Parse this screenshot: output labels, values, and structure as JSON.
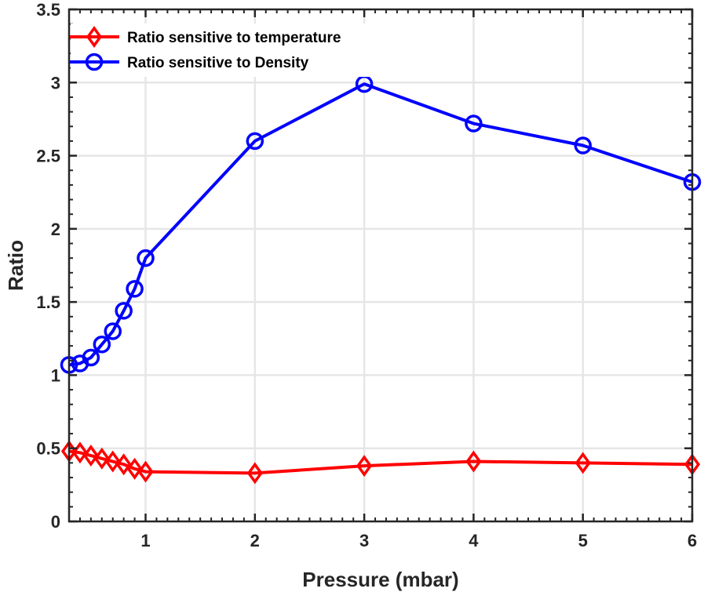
{
  "chart_data": {
    "type": "line",
    "title": "",
    "xlabel": "Pressure (mbar)",
    "ylabel": "Ratio",
    "xlim": [
      0.3,
      6
    ],
    "ylim": [
      0,
      3.5
    ],
    "xticks": [
      1,
      2,
      3,
      4,
      5,
      6
    ],
    "xtick_labels": [
      "1",
      "2",
      "3",
      "4",
      "5",
      "6"
    ],
    "yticks": [
      0,
      0.5,
      1,
      1.5,
      2,
      2.5,
      3,
      3.5
    ],
    "ytick_labels": [
      "0",
      "0.5",
      "1",
      "1.5",
      "2",
      "2.5",
      "3",
      "3.5"
    ],
    "grid": true,
    "legend_position": "top-left",
    "series": [
      {
        "name": "Ratio sensitive to temperature",
        "color": "#ff0000",
        "marker": "diamond",
        "x": [
          0.3,
          0.4,
          0.5,
          0.6,
          0.7,
          0.8,
          0.9,
          1,
          2,
          3,
          4,
          5,
          6
        ],
        "y": [
          0.48,
          0.47,
          0.45,
          0.43,
          0.41,
          0.39,
          0.36,
          0.34,
          0.33,
          0.38,
          0.41,
          0.4,
          0.39
        ]
      },
      {
        "name": "Ratio sensitive to Density",
        "color": "#0000ff",
        "marker": "circle",
        "x": [
          0.3,
          0.4,
          0.5,
          0.6,
          0.7,
          0.8,
          0.9,
          1,
          2,
          3,
          4,
          5,
          6
        ],
        "y": [
          1.07,
          1.08,
          1.12,
          1.21,
          1.3,
          1.44,
          1.59,
          1.8,
          2.6,
          2.99,
          2.72,
          2.57,
          2.32
        ]
      }
    ]
  }
}
